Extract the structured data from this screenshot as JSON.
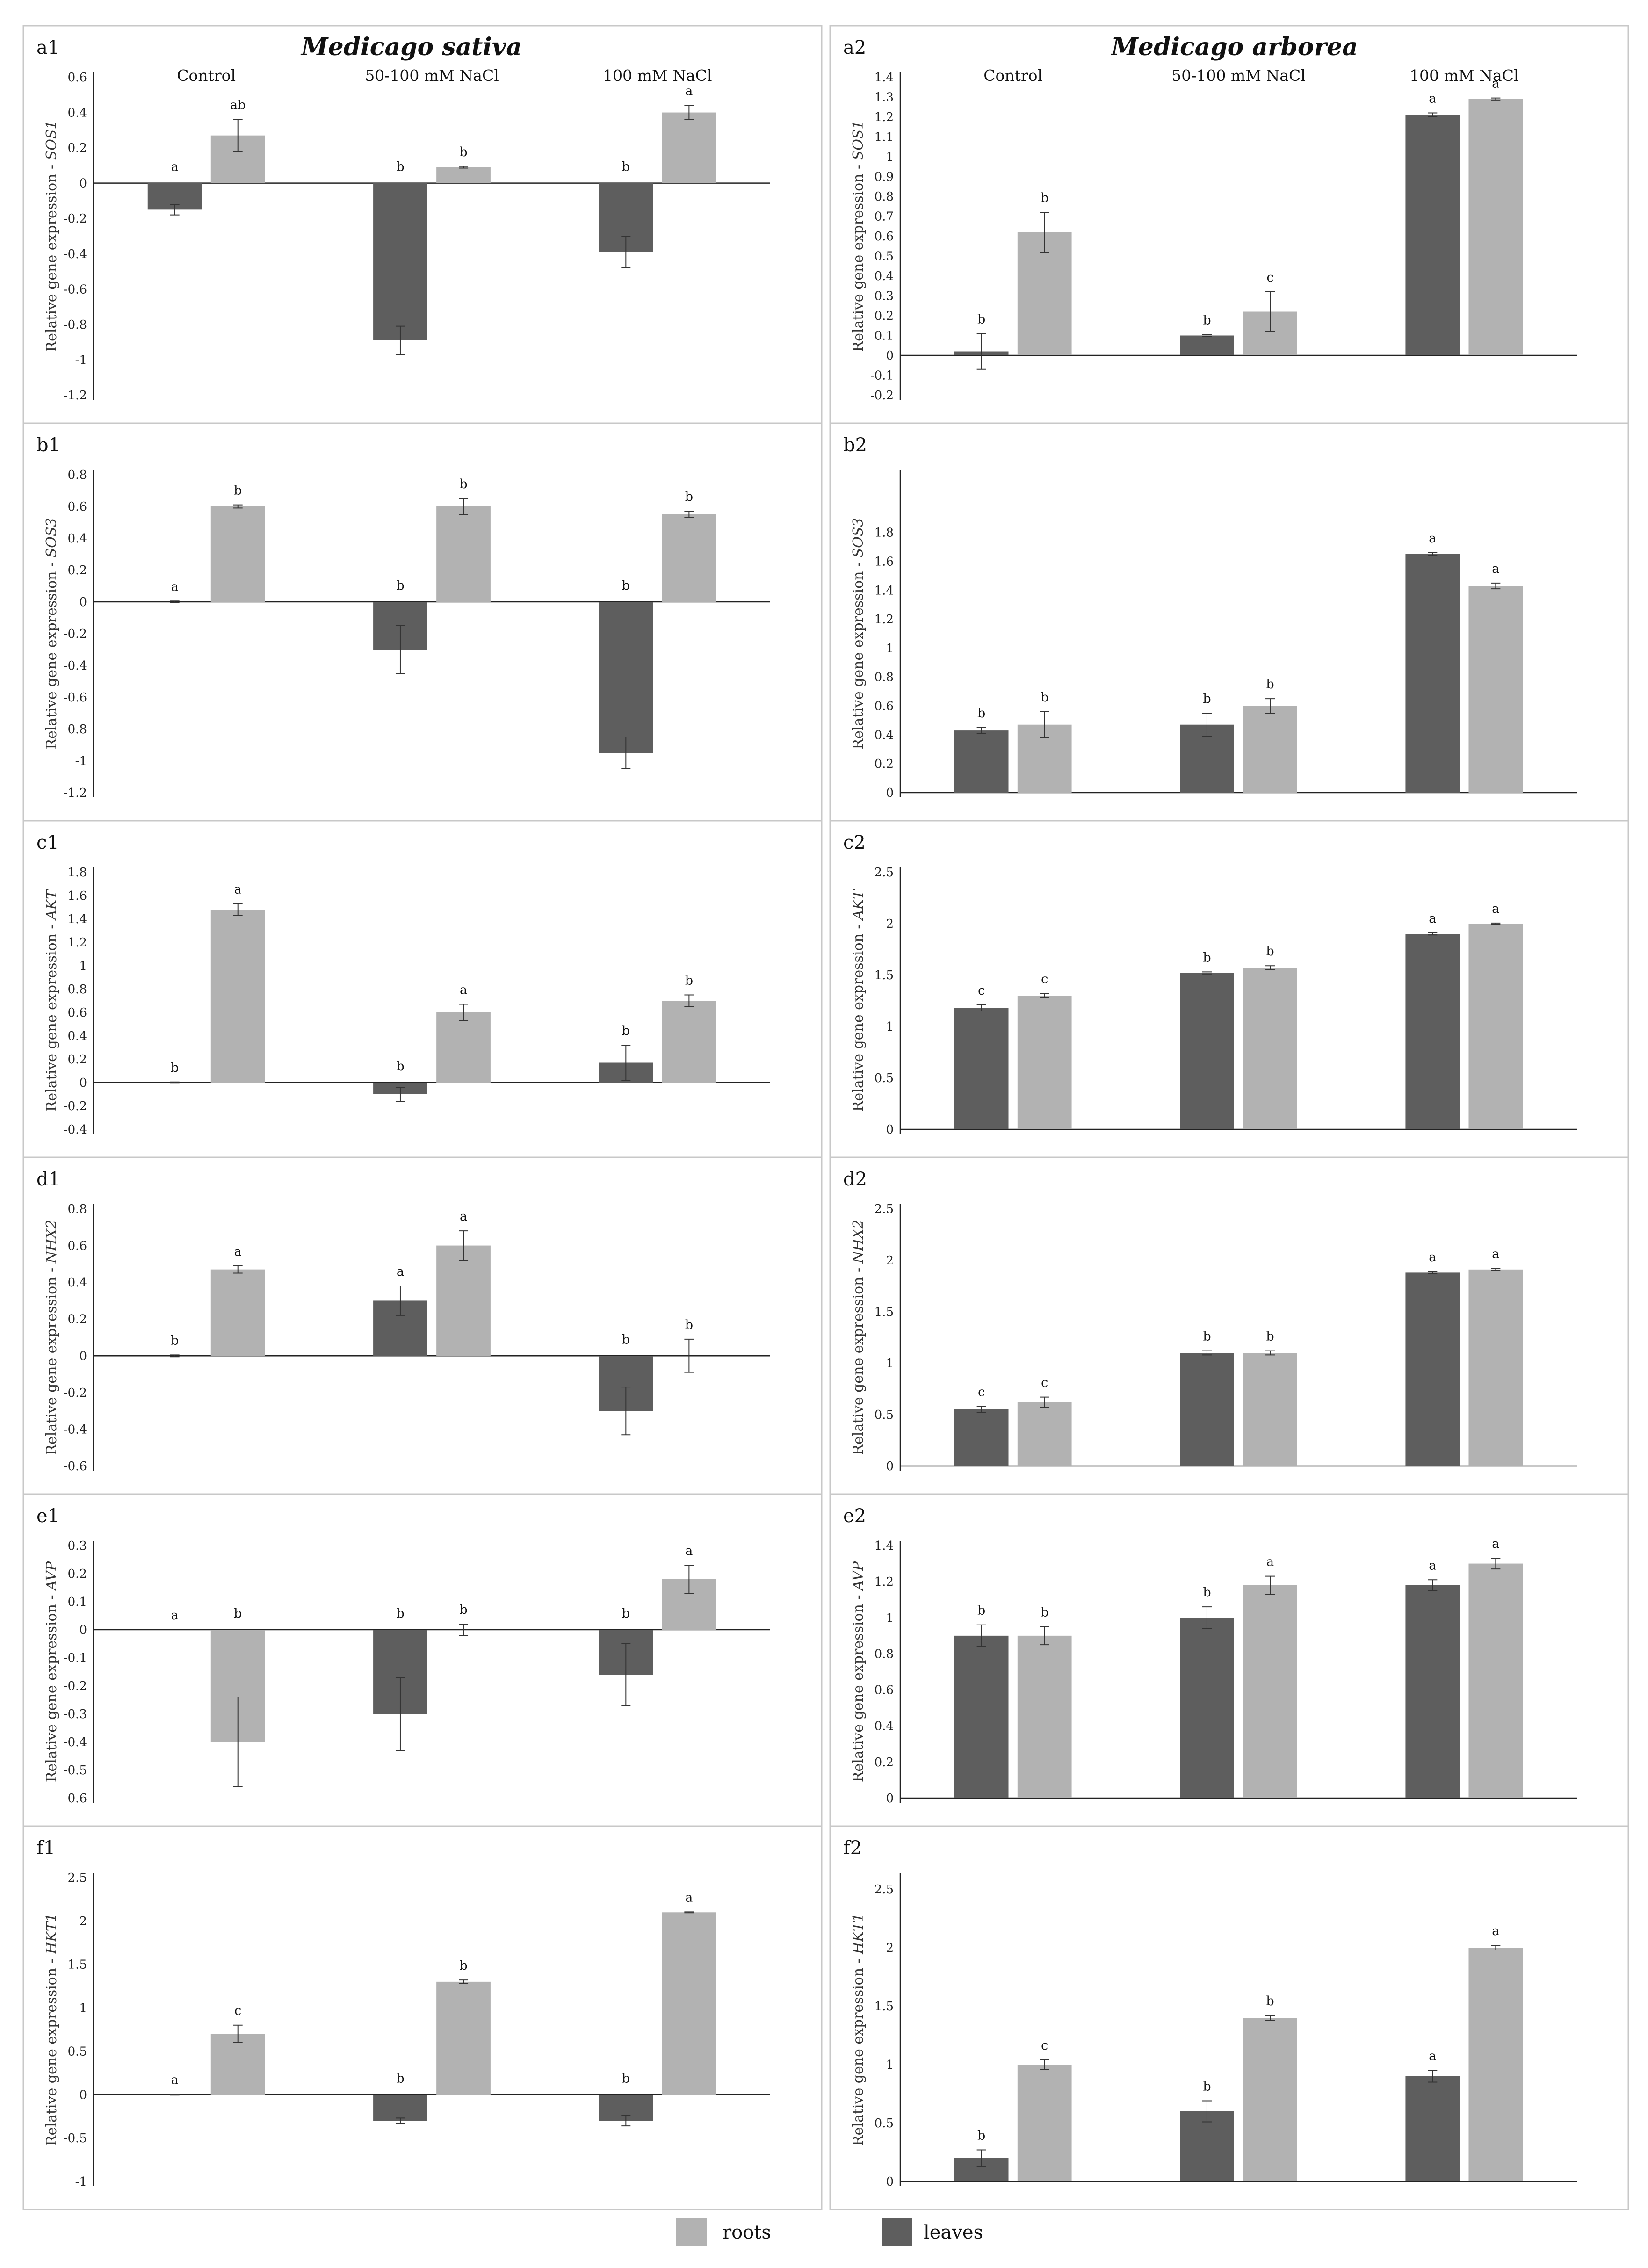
{
  "figure": {
    "species_left": "Medicago sativa",
    "species_right": "Medicago arborea",
    "groups": [
      "Control",
      "50-100 mM NaCl",
      "100 mM NaCl"
    ]
  },
  "legend": [
    {
      "label": "roots",
      "color": "#b2b2b2"
    },
    {
      "label": "leaves",
      "color": "#5e5e5e"
    }
  ],
  "colors": {
    "leaves": "#5e5e5e",
    "roots": "#b2b2b2",
    "frame": "#c8c8c8",
    "axis": "#222222"
  },
  "chart_data": [
    {
      "id": "a1",
      "type": "bar",
      "ylabel_prefix": "Relative gene expression - ",
      "gene": "SOS1",
      "categories": [
        "Control",
        "50-100 mM NaCl",
        "100 mM NaCl"
      ],
      "yticks": [
        "0.6",
        "0.4",
        "0.2",
        "0",
        "-0.2",
        "-0.4",
        "-0.6",
        "-0.8",
        "-1",
        "-1.2"
      ],
      "ylim": [
        -1.2,
        0.6
      ],
      "series": [
        {
          "name": "leaves",
          "values": [
            -0.15,
            -0.89,
            -0.39
          ],
          "err": [
            0.03,
            0.08,
            0.09
          ],
          "sig": [
            "a",
            "b",
            "b"
          ]
        },
        {
          "name": "roots",
          "values": [
            0.27,
            0.09,
            0.4
          ],
          "err": [
            0.09,
            0.005,
            0.04
          ],
          "sig": [
            "ab",
            "b",
            "a"
          ]
        }
      ]
    },
    {
      "id": "a2",
      "type": "bar",
      "ylabel_prefix": "Relative gene expression - ",
      "gene": "SOS1",
      "categories": [
        "Control",
        "50-100 mM NaCl",
        "100 mM NaCl"
      ],
      "yticks": [
        "1.4",
        "1.3",
        "1.2",
        "1.1",
        "1",
        "0.9",
        "0.8",
        "0.7",
        "0.6",
        "0.5",
        "0.4",
        "0.3",
        "0.2",
        "0.1",
        "0",
        "-0.1",
        "-0.2"
      ],
      "ylim": [
        -0.2,
        1.4
      ],
      "series": [
        {
          "name": "leaves",
          "values": [
            0.02,
            0.1,
            1.21
          ],
          "err": [
            0.09,
            0.005,
            0.01
          ],
          "sig": [
            "b",
            "b",
            "a"
          ]
        },
        {
          "name": "roots",
          "values": [
            0.62,
            0.22,
            1.29
          ],
          "err": [
            0.1,
            0.1,
            0.005
          ],
          "sig": [
            "b",
            "c",
            "a"
          ]
        }
      ]
    },
    {
      "id": "b1",
      "type": "bar",
      "ylabel_prefix": "Relative gene expression - ",
      "gene": "SOS3",
      "categories": [
        "Control",
        "50-100 mM NaCl",
        "100 mM NaCl"
      ],
      "yticks": [
        "0.8",
        "0.6",
        "0.4",
        "0.2",
        "0",
        "-0.2",
        "-0.4",
        "-0.6",
        "-0.8",
        "-1",
        "-1.2"
      ],
      "ylim": [
        -1.2,
        0.8
      ],
      "series": [
        {
          "name": "leaves",
          "values": [
            0.0,
            -0.3,
            -0.95
          ],
          "err": [
            0.005,
            0.15,
            0.1
          ],
          "sig": [
            "a",
            "b",
            "b"
          ]
        },
        {
          "name": "roots",
          "values": [
            0.6,
            0.6,
            0.55
          ],
          "err": [
            0.01,
            0.05,
            0.02
          ],
          "sig": [
            "b",
            "b",
            "b"
          ]
        }
      ]
    },
    {
      "id": "b2",
      "type": "bar",
      "ylabel_prefix": "Relative gene expression - ",
      "gene": "SOS3",
      "categories": [
        "Control",
        "50-100 mM NaCl",
        "100 mM NaCl"
      ],
      "yticks": [
        "1.8",
        "1.6",
        "1.4",
        "1.2",
        "1",
        "0.8",
        "0.6",
        "0.4",
        "0.2",
        "0"
      ],
      "ylim": [
        0,
        2.2
      ],
      "series": [
        {
          "name": "leaves",
          "values": [
            0.43,
            0.47,
            1.65
          ],
          "err": [
            0.02,
            0.08,
            0.01
          ],
          "sig": [
            "b",
            "b",
            "a"
          ]
        },
        {
          "name": "roots",
          "values": [
            0.47,
            0.6,
            1.43
          ],
          "err": [
            0.09,
            0.05,
            0.02
          ],
          "sig": [
            "b",
            "b",
            "a"
          ]
        }
      ]
    },
    {
      "id": "c1",
      "type": "bar",
      "ylabel_prefix": "Relative gene expression - ",
      "gene": "AKT",
      "categories": [
        "Control",
        "50-100 mM NaCl",
        "100 mM NaCl"
      ],
      "yticks": [
        "1.8",
        "1.6",
        "1.4",
        "1.2",
        "1",
        "0.8",
        "0.6",
        "0.4",
        "0.2",
        "0",
        "-0.2",
        "-0.4"
      ],
      "ylim": [
        -0.4,
        1.8
      ],
      "series": [
        {
          "name": "leaves",
          "values": [
            0.0,
            -0.1,
            0.17
          ],
          "err": [
            0.005,
            0.06,
            0.15
          ],
          "sig": [
            "b",
            "b",
            "b"
          ]
        },
        {
          "name": "roots",
          "values": [
            1.48,
            0.6,
            0.7
          ],
          "err": [
            0.05,
            0.07,
            0.05
          ],
          "sig": [
            "a",
            "a",
            "b"
          ]
        }
      ]
    },
    {
      "id": "c2",
      "type": "bar",
      "ylabel_prefix": "Relative gene expression - ",
      "gene": "AKT",
      "categories": [
        "Control",
        "50-100 mM NaCl",
        "100 mM NaCl"
      ],
      "yticks": [
        "2.5",
        "2",
        "1.5",
        "1",
        "0.5",
        "0"
      ],
      "ylim": [
        0,
        2.5
      ],
      "series": [
        {
          "name": "leaves",
          "values": [
            1.18,
            1.52,
            1.9
          ],
          "err": [
            0.03,
            0.01,
            0.01
          ],
          "sig": [
            "c",
            "b",
            "a"
          ]
        },
        {
          "name": "roots",
          "values": [
            1.3,
            1.57,
            2.0
          ],
          "err": [
            0.02,
            0.02,
            0.005
          ],
          "sig": [
            "c",
            "b",
            "a"
          ]
        }
      ]
    },
    {
      "id": "d1",
      "type": "bar",
      "ylabel_prefix": "Relative gene expression - ",
      "gene": "NHX2",
      "categories": [
        "Control",
        "50-100 mM NaCl",
        "100 mM NaCl"
      ],
      "yticks": [
        "0.8",
        "0.6",
        "0.4",
        "0.2",
        "0",
        "-0.2",
        "-0.4",
        "-0.6"
      ],
      "ylim": [
        -0.6,
        0.8
      ],
      "series": [
        {
          "name": "leaves",
          "values": [
            0.0,
            0.3,
            -0.3
          ],
          "err": [
            0.005,
            0.08,
            0.13
          ],
          "sig": [
            "b",
            "a",
            "b"
          ]
        },
        {
          "name": "roots",
          "values": [
            0.47,
            0.6,
            0.0
          ],
          "err": [
            0.02,
            0.08,
            0.09
          ],
          "sig": [
            "a",
            "a",
            "b"
          ]
        }
      ]
    },
    {
      "id": "d2",
      "type": "bar",
      "ylabel_prefix": "Relative gene expression - ",
      "gene": "NHX2",
      "categories": [
        "Control",
        "50-100 mM NaCl",
        "100 mM NaCl"
      ],
      "yticks": [
        "2.5",
        "2",
        "1.5",
        "1",
        "0.5",
        "0"
      ],
      "ylim": [
        0,
        2.5
      ],
      "series": [
        {
          "name": "leaves",
          "values": [
            0.55,
            1.1,
            1.88
          ],
          "err": [
            0.03,
            0.02,
            0.01
          ],
          "sig": [
            "c",
            "b",
            "a"
          ]
        },
        {
          "name": "roots",
          "values": [
            0.62,
            1.1,
            1.91
          ],
          "err": [
            0.05,
            0.02,
            0.01
          ],
          "sig": [
            "c",
            "b",
            "a"
          ]
        }
      ]
    },
    {
      "id": "e1",
      "type": "bar",
      "ylabel_prefix": "Relative gene expression - ",
      "gene": "AVP",
      "categories": [
        "Control",
        "50-100 mM NaCl",
        "100 mM NaCl"
      ],
      "yticks": [
        "0.3",
        "0.2",
        "0.1",
        "0",
        "-0.1",
        "-0.2",
        "-0.3",
        "-0.4",
        "-0.5",
        "-0.6"
      ],
      "ylim": [
        -0.6,
        0.3
      ],
      "series": [
        {
          "name": "leaves",
          "values": [
            0.0,
            -0.3,
            -0.16
          ],
          "err": [
            0.0,
            0.13,
            0.11
          ],
          "sig": [
            "a",
            "b",
            "b"
          ]
        },
        {
          "name": "roots",
          "values": [
            -0.4,
            0.0,
            0.18
          ],
          "err": [
            0.16,
            0.02,
            0.05
          ],
          "sig": [
            "b",
            "b",
            "a"
          ]
        }
      ]
    },
    {
      "id": "e2",
      "type": "bar",
      "ylabel_prefix": "Relative gene expression - ",
      "gene": "AVP",
      "categories": [
        "Control",
        "50-100 mM NaCl",
        "100 mM NaCl"
      ],
      "yticks": [
        "1.4",
        "1.2",
        "1",
        "0.8",
        "0.6",
        "0.4",
        "0.2",
        "0"
      ],
      "ylim": [
        0,
        1.4
      ],
      "series": [
        {
          "name": "leaves",
          "values": [
            0.9,
            1.0,
            1.18
          ],
          "err": [
            0.06,
            0.06,
            0.03
          ],
          "sig": [
            "b",
            "b",
            "a"
          ]
        },
        {
          "name": "roots",
          "values": [
            0.9,
            1.18,
            1.3
          ],
          "err": [
            0.05,
            0.05,
            0.03
          ],
          "sig": [
            "b",
            "a",
            "a"
          ]
        }
      ]
    },
    {
      "id": "f1",
      "type": "bar",
      "ylabel_prefix": "Relative gene expression - ",
      "gene": "HKT1",
      "categories": [
        "Control",
        "50-100 mM NaCl",
        "100 mM NaCl"
      ],
      "yticks": [
        "2.5",
        "2",
        "1.5",
        "1",
        "0.5",
        "0",
        "-0.5",
        "-1"
      ],
      "ylim": [
        -1,
        2.5
      ],
      "series": [
        {
          "name": "leaves",
          "values": [
            0.0,
            -0.3,
            -0.3
          ],
          "err": [
            0.005,
            0.03,
            0.06
          ],
          "sig": [
            "a",
            "b",
            "b"
          ]
        },
        {
          "name": "roots",
          "values": [
            0.7,
            1.3,
            2.1
          ],
          "err": [
            0.1,
            0.02,
            0.005
          ],
          "sig": [
            "c",
            "b",
            "a"
          ]
        }
      ]
    },
    {
      "id": "f2",
      "type": "bar",
      "ylabel_prefix": "Relative gene expression - ",
      "gene": "HKT1",
      "categories": [
        "Control",
        "50-100 mM NaCl",
        "100 mM NaCl"
      ],
      "yticks": [
        "2.5",
        "2",
        "1.5",
        "1",
        "0.5",
        "0"
      ],
      "ylim": [
        0,
        2.6
      ],
      "series": [
        {
          "name": "leaves",
          "values": [
            0.2,
            0.6,
            0.9
          ],
          "err": [
            0.07,
            0.09,
            0.05
          ],
          "sig": [
            "b",
            "b",
            "a"
          ]
        },
        {
          "name": "roots",
          "values": [
            1.0,
            1.4,
            2.0
          ],
          "err": [
            0.04,
            0.02,
            0.02
          ],
          "sig": [
            "c",
            "b",
            "a"
          ]
        }
      ]
    }
  ]
}
